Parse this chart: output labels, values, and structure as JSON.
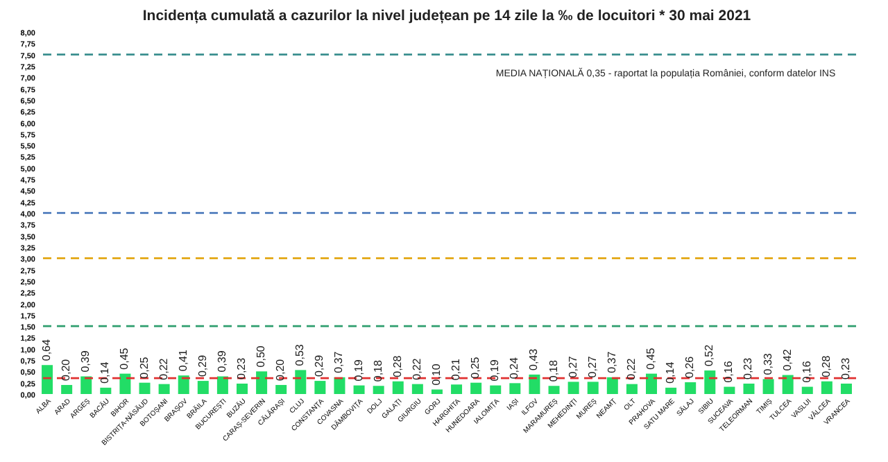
{
  "chart_data": {
    "type": "bar",
    "title": "Incidența cumulată a cazurilor la nivel județean pe 14 zile la ‰ de locuitori *  30 mai 2021",
    "categories": [
      "ALBA",
      "ARAD",
      "ARGEȘ",
      "BACĂU",
      "BIHOR",
      "BISTRIȚA-NĂSĂUD",
      "BOTOȘANI",
      "BRAȘOV",
      "BRĂILA",
      "BUCUREȘTI",
      "BUZĂU",
      "CARAȘ-SEVERIN",
      "CĂLĂRAȘI",
      "CLUJ",
      "CONSTANȚA",
      "COVASNA",
      "DÂMBOVIȚA",
      "DOLJ",
      "GALAȚI",
      "GIURGIU",
      "GORJ",
      "HARGHITA",
      "HUNEDOARA",
      "IALOMIȚA",
      "IAȘI",
      "ILFOV",
      "MARAMUREȘ",
      "MEHEDINȚI",
      "MUREȘ",
      "NEAMȚ",
      "OLT",
      "PRAHOVA",
      "SATU MARE",
      "SĂLAJ",
      "SIBIU",
      "SUCEAVA",
      "TELEORMAN",
      "TIMIȘ",
      "TULCEA",
      "VASLUI",
      "VÂLCEA",
      "VRANCEA"
    ],
    "values": [
      0.64,
      0.2,
      0.39,
      0.14,
      0.45,
      0.25,
      0.22,
      0.41,
      0.29,
      0.39,
      0.23,
      0.5,
      0.2,
      0.53,
      0.29,
      0.37,
      0.19,
      0.18,
      0.28,
      0.22,
      0.1,
      0.21,
      0.25,
      0.19,
      0.24,
      0.43,
      0.18,
      0.27,
      0.27,
      0.37,
      0.22,
      0.45,
      0.14,
      0.26,
      0.52,
      0.16,
      0.23,
      0.33,
      0.42,
      0.16,
      0.28,
      0.23
    ],
    "value_labels": [
      "0,64",
      "0,20",
      "0,39",
      "0,14",
      "0,45",
      "0,25",
      "0,22",
      "0,41",
      "0,29",
      "0,39",
      "0,23",
      "0,50",
      "0,20",
      "0,53",
      "0,29",
      "0,37",
      "0,19",
      "0,18",
      "0,28",
      "0,22",
      "0,10",
      "0,21",
      "0,25",
      "0,19",
      "0,24",
      "0,43",
      "0,18",
      "0,27",
      "0,27",
      "0,37",
      "0,22",
      "0,45",
      "0,14",
      "0,26",
      "0,52",
      "0,16",
      "0,23",
      "0,33",
      "0,42",
      "0,16",
      "0,28",
      "0,23"
    ],
    "color": "#22dd66",
    "ylim": [
      0,
      8
    ],
    "yticks": [
      {
        "value": 0,
        "label": "0,00"
      },
      {
        "value": 0.25,
        "label": "0,25"
      },
      {
        "value": 0.5,
        "label": "0,50"
      },
      {
        "value": 0.75,
        "label": "0,75"
      },
      {
        "value": 1,
        "label": "1,00"
      },
      {
        "value": 1.25,
        "label": "1,25"
      },
      {
        "value": 1.5,
        "label": "1,50"
      },
      {
        "value": 1.75,
        "label": "1,75"
      },
      {
        "value": 2,
        "label": "2,00"
      },
      {
        "value": 2.25,
        "label": "2,25"
      },
      {
        "value": 2.5,
        "label": "2,50"
      },
      {
        "value": 2.75,
        "label": "2,75"
      },
      {
        "value": 3,
        "label": "3,00"
      },
      {
        "value": 3.25,
        "label": "3,25"
      },
      {
        "value": 3.5,
        "label": "3,50"
      },
      {
        "value": 3.75,
        "label": "3,75"
      },
      {
        "value": 4,
        "label": "4,00"
      },
      {
        "value": 4.25,
        "label": "4,25"
      },
      {
        "value": 4.5,
        "label": "4,50"
      },
      {
        "value": 4.75,
        "label": "4,75"
      },
      {
        "value": 5,
        "label": "5,00"
      },
      {
        "value": 5.25,
        "label": "5,25"
      },
      {
        "value": 5.5,
        "label": "5,50"
      },
      {
        "value": 5.75,
        "label": "5,75"
      },
      {
        "value": 6,
        "label": "6,00"
      },
      {
        "value": 6.25,
        "label": "6,25"
      },
      {
        "value": 6.5,
        "label": "6,50"
      },
      {
        "value": 6.75,
        "label": "6,75"
      },
      {
        "value": 7,
        "label": "7,00"
      },
      {
        "value": 7.25,
        "label": "7,25"
      },
      {
        "value": 7.5,
        "label": "7,50"
      },
      {
        "value": 7.75,
        "label": "7,75"
      },
      {
        "value": 8,
        "label": "8,00"
      }
    ],
    "ref_lines": [
      {
        "axis": "y",
        "value": 7.5,
        "color": "#3a8f8f",
        "line_style": "dashed"
      },
      {
        "axis": "y",
        "value": 4,
        "color": "#3d6fb6",
        "line_style": "dashed"
      },
      {
        "axis": "y",
        "value": 3,
        "color": "#e0a000",
        "line_style": "dashed"
      },
      {
        "axis": "y",
        "value": 1.5,
        "color": "#2e9e6e",
        "line_style": "dashed"
      },
      {
        "axis": "y",
        "value": 0.35,
        "color": "#e03030",
        "line_style": "dashed"
      }
    ],
    "annotations": [
      "MEDIA NAȚIONALĂ 0,35 - raportat la populația României, conform datelor INS"
    ],
    "grid": false
  }
}
